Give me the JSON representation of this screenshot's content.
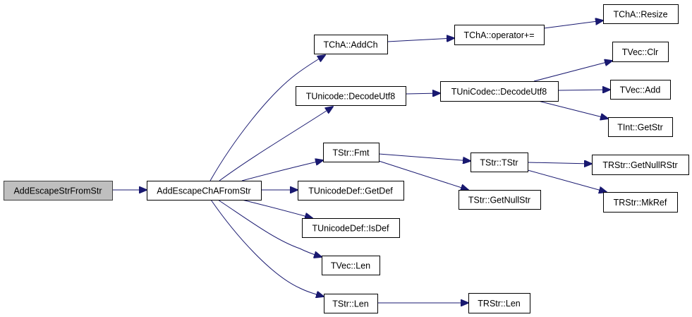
{
  "graph": {
    "nodes": [
      {
        "id": "root",
        "label": "AddEscapeStrFromStr",
        "highlighted": true
      },
      {
        "id": "acfs",
        "label": "AddEscapeChAFromStr"
      },
      {
        "id": "addch",
        "label": "TChA::AddCh"
      },
      {
        "id": "opadd",
        "label": "TChA::operator+="
      },
      {
        "id": "resize",
        "label": "TChA::Resize"
      },
      {
        "id": "udecode",
        "label": "TUnicode::DecodeUtf8"
      },
      {
        "id": "ucdecode",
        "label": "TUniCodec::DecodeUtf8"
      },
      {
        "id": "clr",
        "label": "TVec::Clr"
      },
      {
        "id": "vadd",
        "label": "TVec::Add"
      },
      {
        "id": "getstr",
        "label": "TInt::GetStr"
      },
      {
        "id": "fmt",
        "label": "TStr::Fmt"
      },
      {
        "id": "tstr",
        "label": "TStr::TStr"
      },
      {
        "id": "getnullrstr",
        "label": "TRStr::GetNullRStr"
      },
      {
        "id": "mkref",
        "label": "TRStr::MkRef"
      },
      {
        "id": "getnullstr",
        "label": "TStr::GetNullStr"
      },
      {
        "id": "getdef",
        "label": "TUnicodeDef::GetDef"
      },
      {
        "id": "isdef",
        "label": "TUnicodeDef::IsDef"
      },
      {
        "id": "vlen",
        "label": "TVec::Len"
      },
      {
        "id": "slen",
        "label": "TStr::Len"
      },
      {
        "id": "rlen",
        "label": "TRStr::Len"
      }
    ],
    "edges": [
      {
        "from": "root",
        "to": "acfs"
      },
      {
        "from": "acfs",
        "to": "addch"
      },
      {
        "from": "acfs",
        "to": "udecode"
      },
      {
        "from": "acfs",
        "to": "fmt"
      },
      {
        "from": "acfs",
        "to": "getdef"
      },
      {
        "from": "acfs",
        "to": "isdef"
      },
      {
        "from": "acfs",
        "to": "vlen"
      },
      {
        "from": "acfs",
        "to": "slen"
      },
      {
        "from": "addch",
        "to": "opadd"
      },
      {
        "from": "opadd",
        "to": "resize"
      },
      {
        "from": "udecode",
        "to": "ucdecode"
      },
      {
        "from": "ucdecode",
        "to": "clr"
      },
      {
        "from": "ucdecode",
        "to": "vadd"
      },
      {
        "from": "ucdecode",
        "to": "getstr"
      },
      {
        "from": "fmt",
        "to": "tstr"
      },
      {
        "from": "fmt",
        "to": "getnullstr"
      },
      {
        "from": "tstr",
        "to": "getnullrstr"
      },
      {
        "from": "tstr",
        "to": "mkref"
      },
      {
        "from": "slen",
        "to": "rlen"
      }
    ],
    "colors": {
      "edge": "#191970",
      "root_fill": "#bfbfbf",
      "node_fill": "#ffffff"
    }
  }
}
